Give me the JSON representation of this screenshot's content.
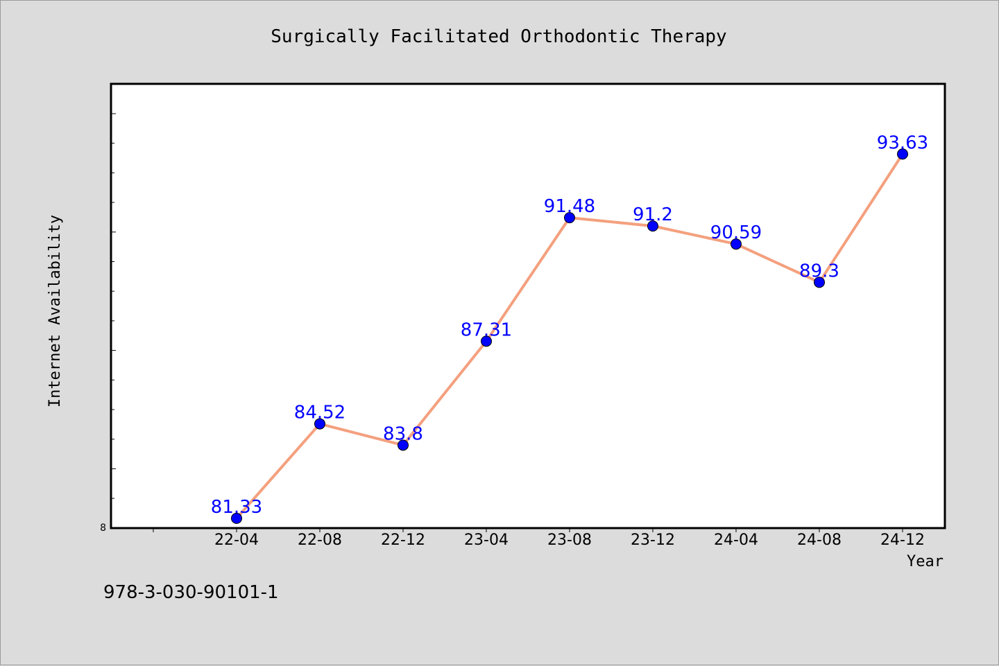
{
  "chart_data": {
    "type": "line",
    "title": "Surgically Facilitated Orthodontic Therapy",
    "xlabel": "Year",
    "ylabel": "Internet Availability",
    "categories": [
      "22-04",
      "22-08",
      "22-12",
      "23-04",
      "23-08",
      "23-12",
      "24-04",
      "24-08",
      "24-12"
    ],
    "series": [
      {
        "values": [
          81.33,
          84.52,
          83.8,
          87.31,
          91.48,
          91.2,
          90.59,
          89.3,
          93.63
        ]
      }
    ],
    "data_labels": [
      "81.33",
      "84.52",
      "83.8",
      "87.31",
      "91.48",
      "91.2",
      "90.59",
      "89.3",
      "93.63"
    ],
    "ylim": [
      81,
      96
    ],
    "y_tick_label": "8",
    "grid": false,
    "legend": "none"
  },
  "footer_text": "978-3-030-90101-1",
  "colors": {
    "background": "#dcdcdc",
    "plot_background": "#ffffff",
    "line": "#f4a07e",
    "marker": "#0000ff",
    "data_label": "#0000ff",
    "text": "#000000"
  }
}
